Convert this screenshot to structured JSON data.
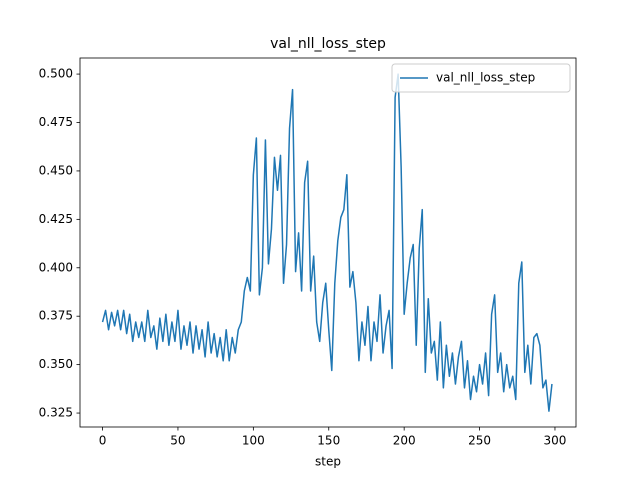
{
  "chart_data": {
    "type": "line",
    "title": "val_nll_loss_step",
    "x_label": "step",
    "x": [
      0,
      2,
      4,
      6,
      8,
      10,
      12,
      14,
      16,
      18,
      20,
      22,
      24,
      26,
      28,
      30,
      32,
      34,
      36,
      38,
      40,
      42,
      44,
      46,
      48,
      50,
      52,
      54,
      56,
      58,
      60,
      62,
      64,
      66,
      68,
      70,
      72,
      74,
      76,
      78,
      80,
      82,
      84,
      86,
      88,
      90,
      92,
      94,
      96,
      98,
      100,
      102,
      104,
      106,
      108,
      110,
      112,
      114,
      116,
      118,
      120,
      122,
      124,
      126,
      128,
      130,
      132,
      134,
      136,
      138,
      140,
      142,
      144,
      146,
      148,
      150,
      152,
      154,
      156,
      158,
      160,
      162,
      164,
      166,
      168,
      170,
      172,
      174,
      176,
      178,
      180,
      182,
      184,
      186,
      188,
      190,
      192,
      194,
      196,
      198,
      200,
      202,
      204,
      206,
      208,
      210,
      212,
      214,
      216,
      218,
      220,
      222,
      224,
      226,
      228,
      230,
      232,
      234,
      236,
      238,
      240,
      242,
      244,
      246,
      248,
      250,
      252,
      254,
      256,
      258,
      260,
      262,
      264,
      266,
      268,
      270,
      272,
      274,
      276,
      278,
      280,
      282,
      284,
      286,
      288,
      290,
      292,
      294,
      296,
      298
    ],
    "series": [
      {
        "name": "val_nll_loss_step",
        "color": "#1f77b4",
        "values": [
          0.372,
          0.378,
          0.368,
          0.377,
          0.37,
          0.378,
          0.368,
          0.378,
          0.366,
          0.376,
          0.362,
          0.372,
          0.364,
          0.372,
          0.362,
          0.378,
          0.364,
          0.37,
          0.358,
          0.374,
          0.362,
          0.376,
          0.36,
          0.372,
          0.362,
          0.378,
          0.358,
          0.37,
          0.36,
          0.372,
          0.356,
          0.37,
          0.358,
          0.368,
          0.354,
          0.372,
          0.356,
          0.366,
          0.354,
          0.364,
          0.352,
          0.368,
          0.352,
          0.364,
          0.356,
          0.368,
          0.372,
          0.388,
          0.395,
          0.388,
          0.448,
          0.467,
          0.386,
          0.4,
          0.466,
          0.402,
          0.42,
          0.457,
          0.44,
          0.458,
          0.392,
          0.412,
          0.472,
          0.492,
          0.398,
          0.418,
          0.388,
          0.444,
          0.455,
          0.388,
          0.406,
          0.372,
          0.362,
          0.382,
          0.392,
          0.368,
          0.347,
          0.392,
          0.414,
          0.426,
          0.43,
          0.448,
          0.39,
          0.398,
          0.382,
          0.352,
          0.372,
          0.36,
          0.38,
          0.352,
          0.372,
          0.362,
          0.386,
          0.356,
          0.37,
          0.378,
          0.348,
          0.488,
          0.5,
          0.452,
          0.376,
          0.392,
          0.405,
          0.412,
          0.36,
          0.41,
          0.43,
          0.346,
          0.384,
          0.356,
          0.362,
          0.342,
          0.372,
          0.338,
          0.36,
          0.344,
          0.356,
          0.34,
          0.354,
          0.362,
          0.338,
          0.352,
          0.332,
          0.344,
          0.336,
          0.35,
          0.34,
          0.356,
          0.334,
          0.376,
          0.386,
          0.346,
          0.356,
          0.336,
          0.35,
          0.338,
          0.344,
          0.332,
          0.392,
          0.403,
          0.346,
          0.36,
          0.34,
          0.364,
          0.366,
          0.36,
          0.338,
          0.342,
          0.326,
          0.34
        ]
      }
    ],
    "xlim": [
      -14.95,
      313.95
    ],
    "ylim": [
      0.3178,
      0.5083
    ],
    "xticks": [
      0,
      50,
      100,
      150,
      200,
      250,
      300
    ],
    "yticks": [
      0.325,
      {
        "value": 0.35,
        "label": "0.350"
      },
      0.375,
      {
        "value": 0.4,
        "label": "0.400"
      },
      0.425,
      {
        "value": 0.45,
        "label": "0.450"
      },
      0.475,
      {
        "value": 0.5,
        "label": "0.500"
      }
    ],
    "legend": "upper right"
  }
}
